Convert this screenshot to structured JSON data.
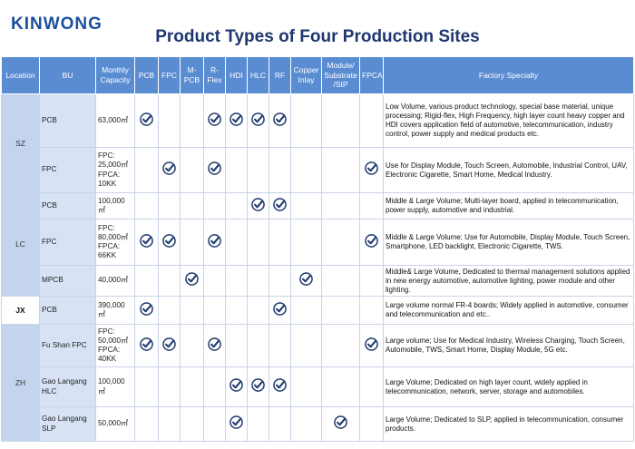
{
  "header": {
    "logo": "KINWONG",
    "title": "Product Types of Four Production Sites"
  },
  "table": {
    "columns": [
      "Location",
      "BU",
      "Monthly Capacity",
      "PCB",
      "FPC",
      "M-PCB",
      "R-Flex",
      "HDI",
      "HLC",
      "RF",
      "Copper Inlay",
      "Module/ Substrate /SIP",
      "FPCA",
      "Factory Specialty"
    ],
    "sites": [
      {
        "location": "SZ",
        "rows": [
          {
            "bu": "PCB",
            "capacity": "63,000㎡",
            "checks": [
              true,
              false,
              false,
              true,
              true,
              true,
              true,
              false,
              false,
              false
            ],
            "specialty": "Low Volume, various product technology, special base material, unique processing; Rigid-flex, High Frequency, high layer count heavy copper and HDI covers application field of automotive, telecommunication, industry control, power supply and medical products etc."
          },
          {
            "bu": "FPC",
            "capacity": "FPC: 25,000㎡ FPCA: 10KK",
            "checks": [
              false,
              true,
              false,
              true,
              false,
              false,
              false,
              false,
              false,
              true
            ],
            "specialty": "Use for Display Module, Touch Screen, Automobile, Industrial Control, UAV, Electronic Cigarette, Smart Home, Medical Industry."
          }
        ]
      },
      {
        "location": "LC",
        "rows": [
          {
            "bu": "PCB",
            "capacity": "100,000 ㎡",
            "checks": [
              false,
              false,
              false,
              false,
              false,
              true,
              true,
              false,
              false,
              false
            ],
            "specialty": "Middle & Large Volume; Multi-layer board, applied in telecommunication, power supply, automotive and industrial."
          },
          {
            "bu": "FPC",
            "capacity": "FPC: 80,000㎡ FPCA: 66KK",
            "checks": [
              true,
              true,
              false,
              true,
              false,
              false,
              false,
              false,
              false,
              true
            ],
            "specialty": "Middle & Large Volume; Use for Automobile, Display Module, Touch Screen, Smartphone, LED backlight, Electronic Cigarette, TWS."
          },
          {
            "bu": "MPCB",
            "capacity": "40,000㎡",
            "checks": [
              false,
              false,
              true,
              false,
              false,
              false,
              false,
              true,
              false,
              false
            ],
            "specialty": "Middle& Large Volume, Dedicated to thermal management solutions applied in new energy automotive, automotive lighting, power module and other lighting."
          }
        ]
      },
      {
        "location": "JX",
        "rows": [
          {
            "bu": "PCB",
            "capacity": "390,000 ㎡",
            "checks": [
              true,
              false,
              false,
              false,
              false,
              false,
              true,
              false,
              false,
              false
            ],
            "specialty": "Large volume normal FR-4 boards; Widely applied in automotive, consumer and telecommunication and etc.."
          }
        ]
      },
      {
        "location": "ZH",
        "rows": [
          {
            "bu": "Fu Shan FPC",
            "capacity": "FPC: 50,000㎡ FPCA: 40KK",
            "checks": [
              true,
              true,
              false,
              true,
              false,
              false,
              false,
              false,
              false,
              true
            ],
            "specialty": "Large volume; Use for Medical Industry, Wireless Charging, Touch Screen, Automobile, TWS, Smart Home, Display Module, 5G etc."
          },
          {
            "bu": "Gao Langang HLC",
            "capacity": "100,000 ㎡",
            "checks": [
              false,
              false,
              false,
              false,
              true,
              true,
              true,
              false,
              false,
              false
            ],
            "specialty": "Large Volume; Dedicated on high layer count, widely applied in telecommunication, network, server, storage and automobiles."
          },
          {
            "bu": "Gao Langang SLP",
            "capacity": "50,000㎡",
            "checks": [
              false,
              false,
              false,
              false,
              true,
              false,
              false,
              false,
              true,
              false
            ],
            "specialty": "Large Volume; Dedicated to SLP, applied in telecommunication, consumer products."
          }
        ]
      }
    ]
  }
}
